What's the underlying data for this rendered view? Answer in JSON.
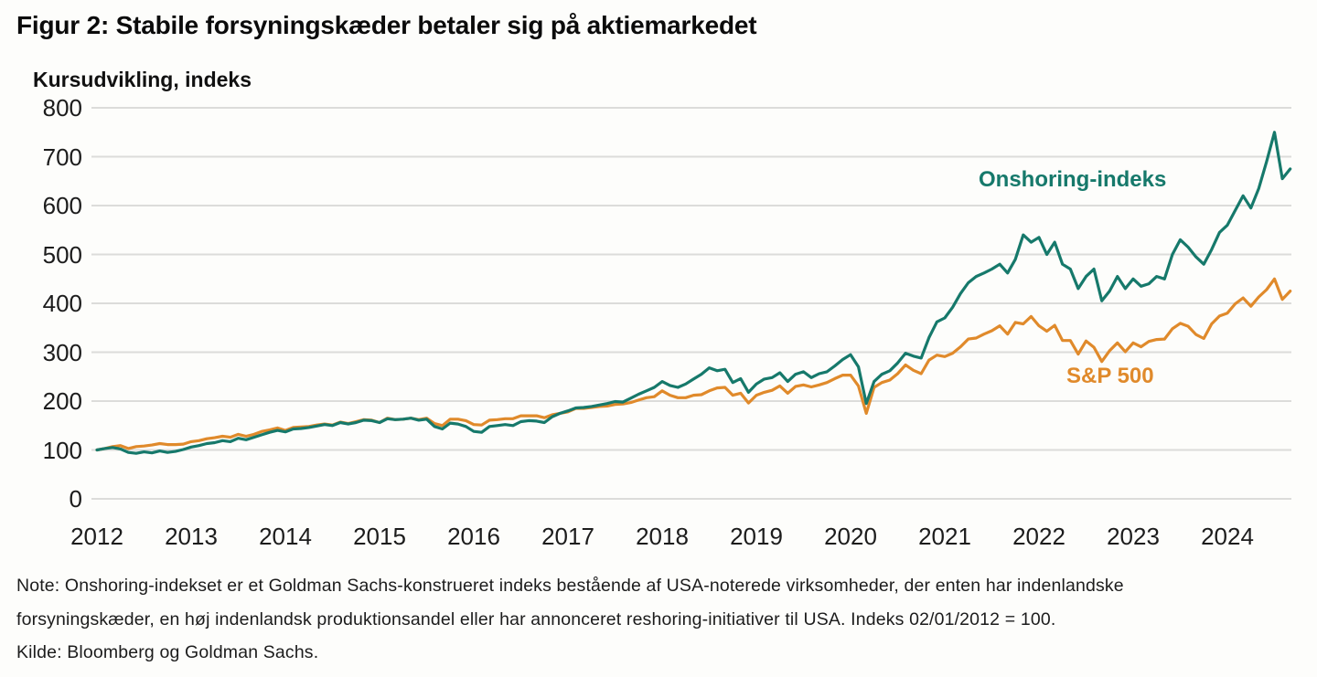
{
  "header": {
    "title": "Figur 2: Stabile forsyningskæder betaler sig på aktiemarkedet"
  },
  "note": {
    "lines": [
      "Note: Onshoring-indekset er et Goldman Sachs-konstrueret indeks bestående af USA-noterede virksomheder, der enten har indenlandske",
      "forsyningskæder, en høj indenlandsk produktionsandel eller har annonceret reshoring-initiativer til USA. Indeks 02/01/2012 = 100."
    ],
    "source": "Kilde: Bloomberg og Goldman Sachs."
  },
  "chart_data": {
    "type": "line",
    "title": "Figur 2: Stabile forsyningskæder betaler sig på aktiemarkedet",
    "ylabel": "Kursudvikling, indeks",
    "xlabel": "",
    "grid": true,
    "gridline_color": "#dcdcda",
    "legend_position": "inline-labels",
    "ylim": [
      0,
      800
    ],
    "y_ticks": [
      0,
      100,
      200,
      300,
      400,
      500,
      600,
      700,
      800
    ],
    "x_ticks": [
      2012,
      2013,
      2014,
      2015,
      2016,
      2017,
      2018,
      2019,
      2020,
      2021,
      2022,
      2023,
      2024
    ],
    "x_start": 2012.0,
    "x_step_years": 0.0833333,
    "series": [
      {
        "name": "S&P 500",
        "color": "#e08a2b",
        "values": [
          100,
          103,
          107,
          109,
          103,
          107,
          108,
          110,
          113,
          111,
          111,
          112,
          117,
          119,
          123,
          125,
          128,
          126,
          132,
          128,
          132,
          138,
          141,
          145,
          140,
          146,
          147,
          148,
          151,
          153,
          151,
          157,
          154,
          158,
          162,
          161,
          156,
          165,
          162,
          163,
          165,
          162,
          165,
          154,
          150,
          163,
          163,
          160,
          152,
          151,
          161,
          162,
          164,
          164,
          170,
          170,
          170,
          166,
          172,
          175,
          178,
          185,
          185,
          187,
          189,
          190,
          193,
          194,
          197,
          202,
          207,
          209,
          221,
          212,
          207,
          207,
          212,
          213,
          221,
          227,
          228,
          212,
          216,
          196,
          212,
          218,
          222,
          231,
          216,
          230,
          233,
          229,
          233,
          238,
          246,
          253,
          253,
          231,
          175,
          228,
          238,
          243,
          256,
          274,
          263,
          256,
          284,
          294,
          291,
          298,
          311,
          327,
          329,
          337,
          344,
          354,
          337,
          361,
          358,
          373,
          354,
          343,
          355,
          324,
          324,
          296,
          323,
          310,
          281,
          303,
          319,
          301,
          319,
          311,
          322,
          326,
          327,
          348,
          359,
          353,
          336,
          328,
          358,
          374,
          380,
          399,
          411,
          394,
          413,
          428,
          450,
          408,
          425
        ]
      },
      {
        "name": "Onshoring-indeks",
        "color": "#16796b",
        "values": [
          100,
          103,
          105,
          102,
          95,
          93,
          96,
          94,
          98,
          95,
          97,
          101,
          106,
          109,
          113,
          115,
          119,
          117,
          124,
          121,
          126,
          131,
          136,
          140,
          137,
          143,
          144,
          146,
          149,
          152,
          150,
          156,
          153,
          156,
          161,
          160,
          156,
          164,
          162,
          163,
          165,
          161,
          163,
          148,
          143,
          155,
          153,
          148,
          138,
          136,
          148,
          150,
          152,
          150,
          158,
          160,
          159,
          156,
          168,
          175,
          180,
          186,
          187,
          189,
          192,
          195,
          199,
          198,
          206,
          214,
          221,
          228,
          240,
          232,
          228,
          235,
          245,
          255,
          268,
          262,
          265,
          238,
          246,
          218,
          235,
          245,
          248,
          258,
          240,
          255,
          260,
          248,
          256,
          260,
          272,
          285,
          295,
          270,
          195,
          240,
          255,
          262,
          278,
          298,
          292,
          288,
          330,
          362,
          370,
          392,
          420,
          442,
          455,
          462,
          470,
          480,
          462,
          490,
          540,
          525,
          535,
          500,
          525,
          480,
          470,
          430,
          455,
          470,
          405,
          425,
          455,
          430,
          450,
          435,
          440,
          455,
          450,
          500,
          530,
          515,
          495,
          480,
          510,
          545,
          560,
          590,
          620,
          595,
          635,
          690,
          750,
          655,
          675
        ]
      }
    ]
  }
}
